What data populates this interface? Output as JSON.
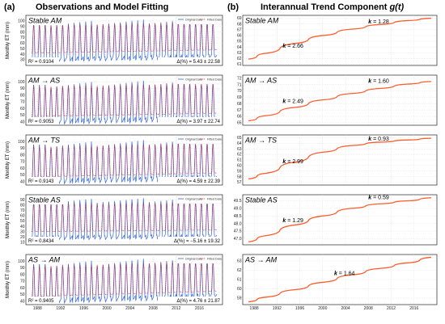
{
  "headings": {
    "left_label": "(a)",
    "left_title": "Observations and Model Fitting",
    "right_label": "(b)",
    "right_title_main": "Interannual Trend Component",
    "right_title_func": "g(t)"
  },
  "legend": {
    "original": "Original Data",
    "fitted": "Fitted Data"
  },
  "ylabel_left": "Monthly ET (mm)",
  "colors": {
    "original": "#3366dd",
    "fitted": "#e0202a",
    "trend": "#ff5a2a",
    "grid": "#d9d9d9"
  },
  "x_ticks_left": [
    "1988",
    "1992",
    "1996",
    "2000",
    "2004",
    "2008",
    "2012",
    "2016",
    "2020"
  ],
  "x_ticks_right": [
    "1988",
    "1992",
    "1996",
    "2000",
    "2004",
    "2008",
    "2012",
    "2016",
    "2020"
  ],
  "chart_data": [
    {
      "type": "line",
      "panel": "left",
      "title": "Stable AM",
      "ylabel": "Monthly ET (mm)",
      "ylim": [
        20,
        110
      ],
      "yticks": [
        "100",
        "90",
        "80",
        "70",
        "60",
        "50",
        "40",
        "30"
      ],
      "series": [
        {
          "name": "Original Data",
          "params": {
            "base": 30,
            "amp": 65,
            "trend": 6
          }
        },
        {
          "name": "Fitted Data",
          "params": {
            "base": 42,
            "amp": 50,
            "trend": 6
          }
        }
      ],
      "r2": "R² = 0.9104",
      "delta": "Δ(%) = 5.43 ± 22.58"
    },
    {
      "type": "line",
      "panel": "left",
      "title": "AM → AS",
      "ylabel": "Monthly ET (mm)",
      "ylim": [
        35,
        110
      ],
      "yticks": [
        "100",
        "90",
        "80",
        "70",
        "60",
        "50",
        "40"
      ],
      "series": [
        {
          "name": "Original Data",
          "params": {
            "base": 40,
            "amp": 55,
            "trend": 5
          }
        },
        {
          "name": "Fitted Data",
          "params": {
            "base": 48,
            "amp": 45,
            "trend": 5
          }
        }
      ],
      "r2": "R² = 0.9053",
      "delta": "Δ(%) = 3.97 ± 22.74"
    },
    {
      "type": "line",
      "panel": "left",
      "title": "AM → TS",
      "ylabel": "Monthly ET (mm)",
      "ylim": [
        35,
        110
      ],
      "yticks": [
        "100",
        "90",
        "80",
        "70",
        "60",
        "50",
        "40"
      ],
      "series": [
        {
          "name": "Original Data",
          "params": {
            "base": 40,
            "amp": 55,
            "trend": 6
          }
        },
        {
          "name": "Fitted Data",
          "params": {
            "base": 47,
            "amp": 45,
            "trend": 6
          }
        }
      ],
      "r2": "R² = 0.9143",
      "delta": "Δ(%) = 4.59 ± 22.39"
    },
    {
      "type": "line",
      "panel": "left",
      "title": "Stable AS",
      "ylabel": "Monthly ET (mm)",
      "ylim": [
        5,
        100
      ],
      "yticks": [
        "90",
        "80",
        "70",
        "60",
        "50",
        "40",
        "30",
        "20",
        "10"
      ],
      "series": [
        {
          "name": "Original Data",
          "params": {
            "base": 18,
            "amp": 70,
            "trend": 3
          }
        },
        {
          "name": "Fitted Data",
          "params": {
            "base": 30,
            "amp": 52,
            "trend": 3
          }
        }
      ],
      "r2": "R² = 0.8434",
      "delta": "Δ(%) = −5.16 ± 19.32"
    },
    {
      "type": "line",
      "panel": "left",
      "title": "AS → AM",
      "ylabel": "Monthly ET (mm)",
      "ylim": [
        35,
        110
      ],
      "yticks": [
        "100",
        "90",
        "80",
        "70",
        "60",
        "50",
        "40"
      ],
      "series": [
        {
          "name": "Original Data",
          "params": {
            "base": 40,
            "amp": 55,
            "trend": 8
          }
        },
        {
          "name": "Fitted Data",
          "params": {
            "base": 47,
            "amp": 45,
            "trend": 8
          }
        }
      ],
      "r2": "R² = 0.9405",
      "delta": "Δ(%) = 4.76 ± 21.87"
    },
    {
      "type": "line",
      "panel": "right",
      "title": "Stable AM",
      "yticks": [
        "69",
        "68",
        "67",
        "66",
        "65",
        "64",
        "63",
        "62",
        "61"
      ],
      "ylim": [
        60.8,
        69.5
      ],
      "x": [
        1987,
        1990,
        1995,
        2000,
        2005,
        2010,
        2015,
        2019
      ],
      "values": [
        61.9,
        62.9,
        64.6,
        66.0,
        67.1,
        67.9,
        68.6,
        69.0
      ],
      "annotations": [
        {
          "text_k": "k",
          "text_v": " = 2.66",
          "at_x": 1993,
          "at_y": 63.9
        },
        {
          "text_k": "k",
          "text_v": " = 1.28",
          "at_x": 2008,
          "at_y": 68.1
        }
      ]
    },
    {
      "type": "line",
      "panel": "right",
      "title": "AM → AS",
      "yticks": [
        "72",
        "71",
        "70",
        "69",
        "68",
        "67",
        "66",
        "65"
      ],
      "ylim": [
        64.6,
        72.5
      ],
      "x": [
        1987,
        1990,
        1995,
        2000,
        2005,
        2010,
        2015,
        2019
      ],
      "values": [
        65.3,
        66.1,
        67.4,
        68.6,
        69.6,
        70.4,
        71.1,
        71.5
      ],
      "annotations": [
        {
          "text_k": "k",
          "text_v": " = 2.49",
          "at_x": 1993,
          "at_y": 68.1
        },
        {
          "text_k": "k",
          "text_v": " = 1.60",
          "at_x": 2008,
          "at_y": 71.3
        }
      ]
    },
    {
      "type": "line",
      "panel": "right",
      "title": "AM → TS",
      "yticks": [
        "65",
        "64",
        "63",
        "62",
        "61",
        "60",
        "59",
        "58",
        "57"
      ],
      "ylim": [
        56.5,
        65.5
      ],
      "x": [
        1987,
        1990,
        1995,
        2000,
        2005,
        2010,
        2015,
        2019
      ],
      "values": [
        57.6,
        58.6,
        60.6,
        62.4,
        63.6,
        64.2,
        64.6,
        64.9
      ],
      "annotations": [
        {
          "text_k": "k",
          "text_v": " = 2.99",
          "at_x": 1993,
          "at_y": 60.4
        },
        {
          "text_k": "k",
          "text_v": " = 0.93",
          "at_x": 2008,
          "at_y": 64.5
        }
      ]
    },
    {
      "type": "line",
      "panel": "right",
      "title": "Stable AS",
      "yticks": [
        "49.5",
        "49.0",
        "48.5",
        "48.0",
        "47.5",
        "47.0"
      ],
      "ylim": [
        46.6,
        49.9
      ],
      "x": [
        1987,
        1990,
        1995,
        2000,
        2005,
        2010,
        2015,
        2019
      ],
      "values": [
        46.8,
        47.2,
        47.9,
        48.5,
        49.0,
        49.3,
        49.5,
        49.7
      ],
      "annotations": [
        {
          "text_k": "k",
          "text_v": " = 1.29",
          "at_x": 1993,
          "at_y": 48.1
        },
        {
          "text_k": "k",
          "text_v": " = 0.59",
          "at_x": 2008,
          "at_y": 49.6
        }
      ]
    },
    {
      "type": "line",
      "panel": "right",
      "title": "AS → AM",
      "yticks": [
        "63",
        "62",
        "61",
        "60",
        "59"
      ],
      "ylim": [
        58.3,
        63.7
      ],
      "x": [
        1987,
        1990,
        1995,
        2000,
        2005,
        2010,
        2015,
        2019
      ],
      "values": [
        58.6,
        59.1,
        59.9,
        60.7,
        61.5,
        62.2,
        62.8,
        63.4
      ],
      "annotations": [
        {
          "text_k": "k",
          "text_v": " = 1.64",
          "at_x": 2002,
          "at_y": 61.5
        }
      ]
    }
  ]
}
